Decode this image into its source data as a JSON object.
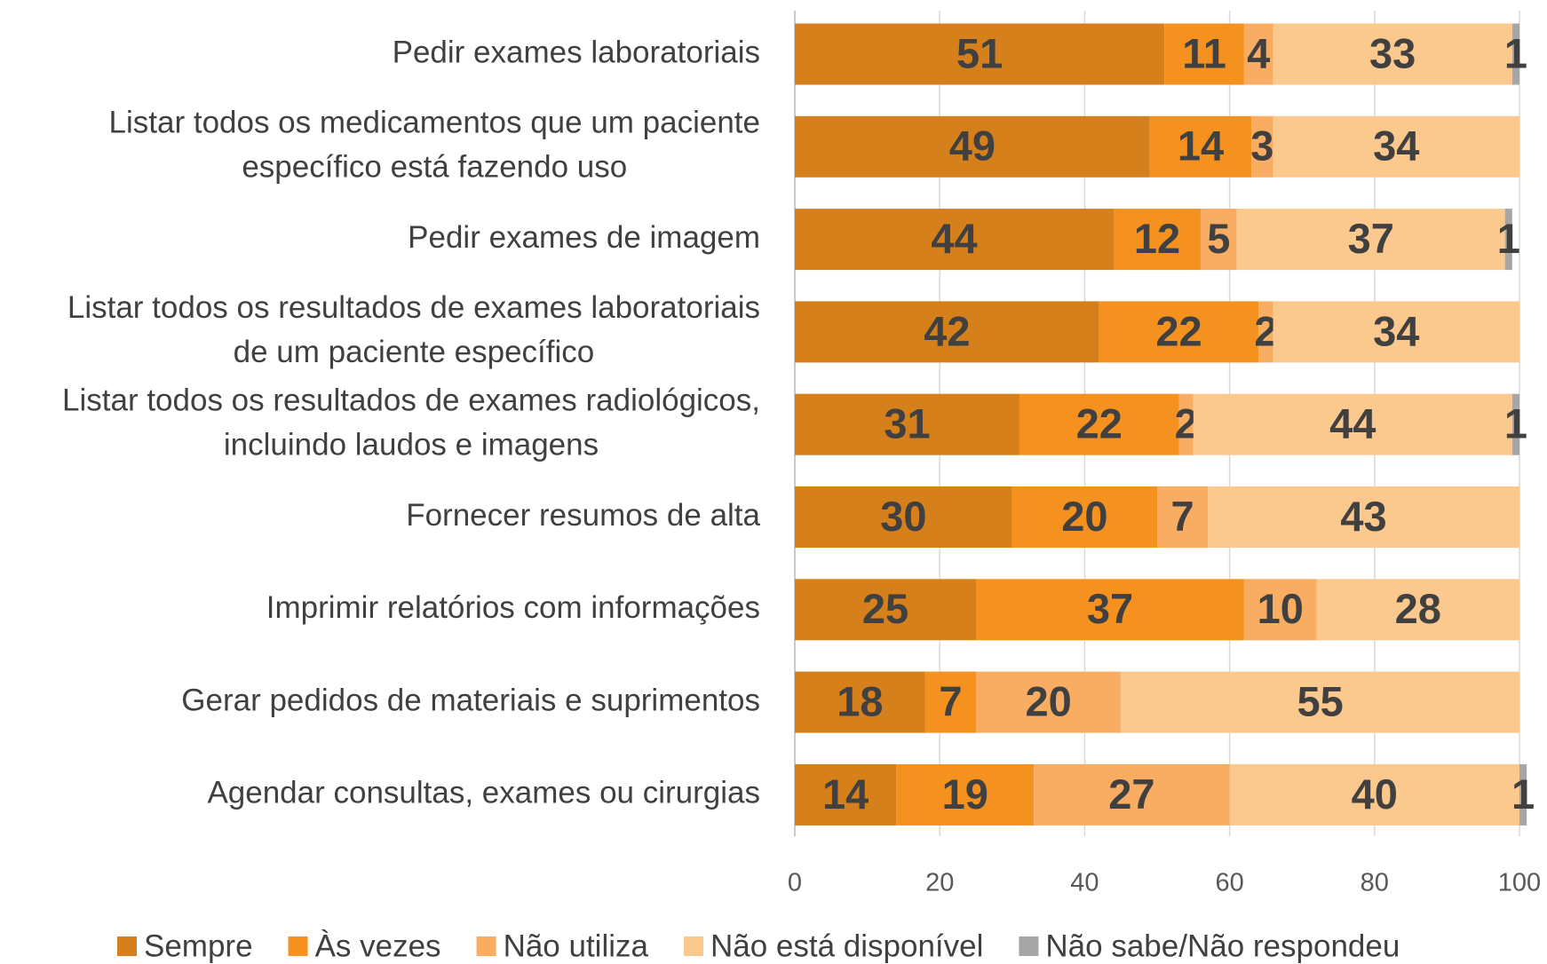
{
  "chart_data": {
    "type": "stacked-bar-horizontal",
    "categories": [
      [
        "Pedir exames laboratoriais"
      ],
      [
        "Listar todos os  medicamentos que um paciente",
        "específico está fazendo uso"
      ],
      [
        "Pedir exames de imagem"
      ],
      [
        "Listar todos os resultados de exames laboratoriais",
        "de um paciente específico"
      ],
      [
        "Listar todos os resultados de exames radiológicos,",
        "incluindo laudos e imagens"
      ],
      [
        "Fornecer resumos de alta"
      ],
      [
        "Imprimir relatórios com informações"
      ],
      [
        "Gerar pedidos de materiais e suprimentos"
      ],
      [
        "Agendar consultas, exames ou cirurgias"
      ]
    ],
    "series": [
      {
        "name": "Sempre",
        "color": "#d6801c",
        "values": [
          51,
          49,
          44,
          42,
          31,
          30,
          25,
          18,
          14
        ]
      },
      {
        "name": "Às vezes",
        "color": "#f5911e",
        "values": [
          11,
          14,
          12,
          22,
          22,
          20,
          37,
          7,
          19
        ]
      },
      {
        "name": "Não utiliza",
        "color": "#f9ad62",
        "values": [
          4,
          3,
          5,
          2,
          2,
          7,
          10,
          20,
          27
        ]
      },
      {
        "name": "Não está disponível",
        "color": "#fbc98e",
        "values": [
          33,
          34,
          37,
          34,
          44,
          43,
          28,
          55,
          40
        ]
      },
      {
        "name": "Não sabe/Não respondeu",
        "color": "#a6a6a6",
        "values": [
          1,
          null,
          1,
          null,
          1,
          null,
          null,
          null,
          1
        ]
      }
    ],
    "xlim": [
      0,
      100
    ],
    "xticks": [
      0,
      20,
      40,
      60,
      80,
      100
    ],
    "grid": true,
    "legend": "bottom"
  }
}
